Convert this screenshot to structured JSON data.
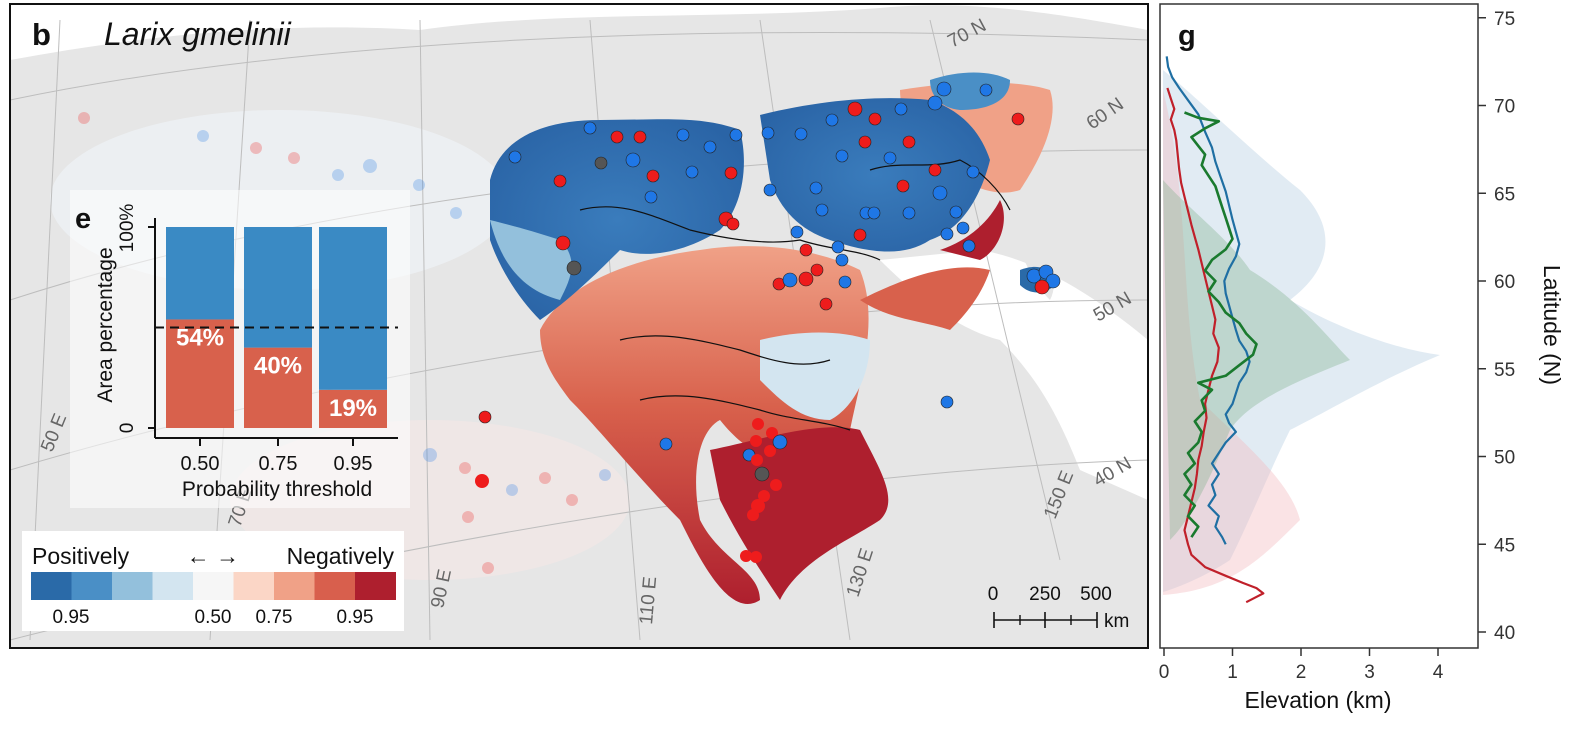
{
  "map_panel": {
    "panel_letter": "b",
    "species": "Larix gmelinii",
    "lat_labels": [
      "70 N",
      "60 N",
      "50 N",
      "40 N"
    ],
    "lon_labels": [
      "50 E",
      "70 E",
      "90 E",
      "110 E",
      "130 E",
      "150 E"
    ],
    "scale_bar": {
      "ticks": [
        "0",
        "250",
        "500"
      ],
      "unit": "km"
    },
    "legend": {
      "left_text": "Positively",
      "arrows": "← →",
      "right_text": "Negatively",
      "colors": [
        "#2a6aa8",
        "#4a8fc6",
        "#93c0dc",
        "#d3e5f0",
        "#f6f6f6",
        "#fbd6c6",
        "#f0a187",
        "#d85f4d",
        "#ae1f2e"
      ],
      "tick_labels": [
        "0.95",
        "0.50",
        "0.75",
        "0.95"
      ]
    }
  },
  "colors": {
    "positive": "#3a8ac4",
    "negative": "#d8614c",
    "point_blue": "#1f77e6",
    "point_red": "#ee1c1c",
    "line_blue": "#1f6fa3",
    "line_red": "#c0202a",
    "line_green": "#1a7a2e"
  },
  "chart_data": [
    {
      "type": "bar",
      "panel_letter": "e",
      "stacked": true,
      "categories": [
        "0.50",
        "0.75",
        "0.95"
      ],
      "xlabel": "Probability threshold",
      "ylabel": "Area percentage",
      "y_tick_labels": [
        "0",
        "100%"
      ],
      "ylim": [
        0,
        100
      ],
      "series": [
        {
          "values": [
            54,
            40,
            19
          ],
          "value_labels": [
            "54%",
            "40%",
            "19%"
          ]
        },
        {
          "values": [
            46,
            60,
            81
          ]
        }
      ],
      "reference_line": 50,
      "reference_style": "dashed"
    },
    {
      "type": "line",
      "panel_letter": "g",
      "xlabel": "Elevation (km)",
      "ylabel": "Latitude (N)",
      "xlim": [
        0,
        4.5
      ],
      "ylim": [
        39,
        76
      ],
      "x_ticks": [
        0,
        1,
        2,
        3,
        4
      ],
      "y_ticks": [
        40,
        45,
        50,
        55,
        60,
        65,
        70,
        75
      ],
      "series": [
        {
          "points": [
            [
              0.04,
              72.8
            ],
            [
              0.06,
              72.2
            ],
            [
              0.12,
              71.6
            ],
            [
              0.22,
              71.0
            ],
            [
              0.35,
              70.3
            ],
            [
              0.5,
              69.5
            ],
            [
              0.6,
              68.5
            ],
            [
              0.7,
              67.6
            ],
            [
              0.75,
              66.8
            ],
            [
              0.82,
              66.0
            ],
            [
              0.9,
              65.1
            ],
            [
              0.95,
              64.3
            ],
            [
              1.0,
              63.5
            ],
            [
              1.05,
              62.8
            ],
            [
              1.1,
              62.1
            ],
            [
              1.05,
              61.4
            ],
            [
              0.95,
              60.7
            ],
            [
              0.88,
              60.0
            ],
            [
              0.9,
              59.3
            ],
            [
              0.95,
              58.6
            ],
            [
              1.0,
              57.9
            ],
            [
              1.05,
              57.2
            ],
            [
              1.1,
              56.6
            ],
            [
              1.2,
              56.0
            ],
            [
              1.25,
              55.4
            ],
            [
              1.2,
              54.8
            ],
            [
              1.1,
              54.2
            ],
            [
              1.05,
              53.6
            ],
            [
              1.0,
              53.0
            ],
            [
              0.9,
              52.4
            ],
            [
              0.95,
              51.9
            ],
            [
              1.05,
              51.4
            ],
            [
              0.9,
              50.8
            ],
            [
              0.8,
              50.2
            ],
            [
              0.7,
              49.6
            ],
            [
              0.8,
              49.0
            ],
            [
              0.7,
              48.4
            ],
            [
              0.75,
              47.8
            ],
            [
              0.65,
              47.2
            ],
            [
              0.8,
              46.6
            ],
            [
              0.75,
              46.0
            ],
            [
              0.85,
              45.4
            ],
            [
              0.9,
              45.0
            ]
          ]
        },
        {
          "points": [
            [
              0.05,
              71.0
            ],
            [
              0.1,
              70.4
            ],
            [
              0.15,
              69.8
            ],
            [
              0.1,
              69.2
            ],
            [
              0.15,
              68.6
            ],
            [
              0.18,
              68.0
            ],
            [
              0.2,
              67.2
            ],
            [
              0.22,
              66.4
            ],
            [
              0.25,
              65.6
            ],
            [
              0.3,
              64.8
            ],
            [
              0.35,
              64.0
            ],
            [
              0.4,
              63.2
            ],
            [
              0.45,
              62.5
            ],
            [
              0.5,
              61.8
            ],
            [
              0.55,
              61.0
            ],
            [
              0.6,
              60.2
            ],
            [
              0.65,
              59.4
            ],
            [
              0.7,
              58.6
            ],
            [
              0.75,
              57.8
            ],
            [
              0.72,
              57.0
            ],
            [
              0.8,
              56.2
            ],
            [
              0.78,
              55.4
            ],
            [
              0.7,
              54.6
            ],
            [
              0.65,
              53.8
            ],
            [
              0.6,
              53.0
            ],
            [
              0.62,
              52.2
            ],
            [
              0.58,
              51.4
            ],
            [
              0.55,
              50.6
            ],
            [
              0.5,
              49.8
            ],
            [
              0.48,
              49.0
            ],
            [
              0.45,
              48.2
            ],
            [
              0.4,
              47.4
            ],
            [
              0.35,
              46.6
            ],
            [
              0.3,
              45.8
            ],
            [
              0.35,
              45.0
            ],
            [
              0.4,
              44.4
            ],
            [
              0.6,
              43.7
            ],
            [
              0.9,
              43.2
            ],
            [
              1.15,
              42.8
            ],
            [
              1.35,
              42.5
            ],
            [
              1.45,
              42.2
            ],
            [
              1.3,
              41.9
            ],
            [
              1.2,
              41.7
            ]
          ]
        },
        {
          "points": [
            [
              0.3,
              69.6
            ],
            [
              0.5,
              69.3
            ],
            [
              0.8,
              69.1
            ],
            [
              0.6,
              68.7
            ],
            [
              0.4,
              68.2
            ],
            [
              0.5,
              67.7
            ],
            [
              0.6,
              67.2
            ],
            [
              0.55,
              66.6
            ],
            [
              0.65,
              66.0
            ],
            [
              0.75,
              65.4
            ],
            [
              0.8,
              64.8
            ],
            [
              0.85,
              64.2
            ],
            [
              0.9,
              63.6
            ],
            [
              0.95,
              63.0
            ],
            [
              1.0,
              62.4
            ],
            [
              0.9,
              61.8
            ],
            [
              0.7,
              61.2
            ],
            [
              0.6,
              60.6
            ],
            [
              0.75,
              60.0
            ],
            [
              0.65,
              59.4
            ],
            [
              0.8,
              58.8
            ],
            [
              0.9,
              58.2
            ],
            [
              1.1,
              57.6
            ],
            [
              1.2,
              57.0
            ],
            [
              1.35,
              56.4
            ],
            [
              1.3,
              55.8
            ],
            [
              1.1,
              55.2
            ],
            [
              0.9,
              54.6
            ],
            [
              0.5,
              54.2
            ],
            [
              0.7,
              53.8
            ],
            [
              0.55,
              53.2
            ],
            [
              0.6,
              52.6
            ],
            [
              0.45,
              52.0
            ],
            [
              0.55,
              51.4
            ],
            [
              0.5,
              50.8
            ],
            [
              0.35,
              50.2
            ],
            [
              0.45,
              49.6
            ],
            [
              0.3,
              49.0
            ],
            [
              0.4,
              48.4
            ],
            [
              0.3,
              47.8
            ],
            [
              0.45,
              47.2
            ],
            [
              0.35,
              46.6
            ],
            [
              0.5,
              46.0
            ],
            [
              0.4,
              45.4
            ]
          ]
        }
      ]
    }
  ]
}
